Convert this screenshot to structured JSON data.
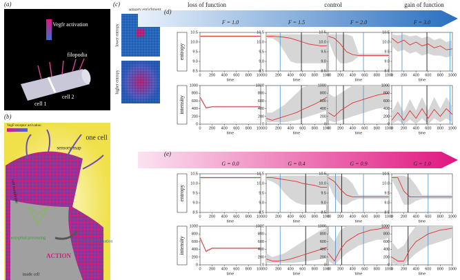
{
  "panel_a": {
    "label": "(a)",
    "colorbar": "Vegfr activation",
    "filopodia": "filopodia",
    "cell1": "cell 1",
    "cell2": "cell 2"
  },
  "panel_b": {
    "label": "(b)",
    "colorbar": "VegF-receptor activation",
    "one_cell": "one cell",
    "sensory_map": "sensory map",
    "membrane": "cell membrane",
    "perceptual": "perceptual processing",
    "action": "ACTION",
    "filopodia": "filopodia formation",
    "inside": "inside cell"
  },
  "panel_c": {
    "label": "(c)",
    "title": "sensory enrichment",
    "lower": "lower entropy",
    "higher": "higher entropy"
  },
  "panel_d": {
    "type": "line",
    "label": "(d)",
    "headers": [
      "loss of function",
      "control",
      "gain of function"
    ],
    "params": [
      "F = 1.0",
      "F = 1.5",
      "F = 2.0",
      "F = 3.0"
    ],
    "x": [
      0,
      100,
      200,
      300,
      400,
      500,
      600,
      700,
      800,
      900,
      1000
    ],
    "xlim": [
      0,
      1000
    ],
    "xticks": [
      0,
      200,
      400,
      600,
      800,
      1000
    ],
    "xlabel": "time",
    "mean_color": "#e03030",
    "band_color": "#d6d6d6",
    "rows": [
      {
        "ylabel": "entropy",
        "ylim": [
          8.5,
          10.5
        ],
        "yticks": [
          8.5,
          {
            "value": 9,
            "label": "9.0"
          },
          9.5,
          {
            "value": 10,
            "label": "10.0"
          },
          10.5
        ],
        "charts": [
          {
            "mean": [
              10.3,
              10.3,
              10.3,
              10.3,
              10.3,
              10.3,
              10.3,
              10.3,
              10.3,
              10.3,
              10.3
            ],
            "band_low": [
              10.25,
              10.25,
              10.25,
              10.25,
              10.25,
              10.25,
              10.25,
              10.25,
              10.25,
              10.25,
              10.25
            ],
            "band_high": [
              10.35,
              10.35,
              10.35,
              10.35,
              10.35,
              10.35,
              10.35,
              10.35,
              10.35,
              10.35,
              10.35
            ],
            "vlines": []
          },
          {
            "mean": [
              10.3,
              10.3,
              10.28,
              10.25,
              10.2,
              10.1,
              10.0,
              9.9,
              9.85,
              9.8,
              9.8
            ],
            "band_low": [
              10.2,
              10.2,
              10.0,
              9.5,
              9.0,
              8.9,
              8.9,
              8.9,
              8.9,
              8.9,
              8.9
            ],
            "band_high": [
              10.4,
              10.4,
              10.4,
              10.4,
              10.4,
              10.4,
              10.4,
              10.4,
              10.4,
              10.4,
              10.4
            ],
            "vlines": [
              {
                "x": 230,
                "color": "#4a90c8"
              },
              {
                "x": 580,
                "color": "#000000"
              }
            ]
          },
          {
            "mean": [
              10.3,
              10.2,
              9.9,
              9.5,
              9.35,
              9.3,
              9.3,
              9.3,
              9.3,
              9.3,
              9.3
            ],
            "band_low": [
              10.1,
              9.3,
              8.9,
              8.9,
              9.0,
              9.25,
              9.25,
              9.25,
              9.25,
              9.25,
              9.25
            ],
            "band_high": [
              10.4,
              10.4,
              10.4,
              10.4,
              10.3,
              9.4,
              9.4,
              9.4,
              9.4,
              9.4,
              9.4
            ],
            "vlines": [
              {
                "x": 130,
                "color": "#4a90c8"
              },
              {
                "x": 250,
                "color": "#000000"
              },
              {
                "x": 580,
                "color": "#4a90c8"
              }
            ]
          },
          {
            "mean": [
              10.2,
              9.95,
              10.1,
              9.85,
              10.0,
              9.8,
              9.9,
              9.7,
              9.8,
              9.6,
              9.65
            ],
            "band_low": [
              9.8,
              9.5,
              9.6,
              9.4,
              9.5,
              9.3,
              9.4,
              9.3,
              9.3,
              9.2,
              9.3
            ],
            "band_high": [
              10.4,
              10.35,
              10.4,
              10.3,
              10.35,
              10.2,
              10.3,
              10.1,
              10.2,
              10.0,
              10.1
            ],
            "vlines": [
              {
                "x": 170,
                "color": "#4a90c8"
              },
              {
                "x": 580,
                "color": "#000000"
              },
              {
                "x": 960,
                "color": "#4a90c8"
              }
            ]
          }
        ]
      },
      {
        "ylabel": "intensity",
        "ylim": [
          0,
          1000
        ],
        "yticks": [
          0,
          200,
          400,
          600,
          800,
          1000
        ],
        "charts": [
          {
            "mean": [
              700,
              420,
              450,
              450,
              450,
              450,
              450,
              450,
              450,
              450,
              450
            ],
            "band_low": [
              650,
              400,
              430,
              430,
              430,
              430,
              430,
              430,
              430,
              430,
              430
            ],
            "band_high": [
              750,
              450,
              470,
              470,
              470,
              470,
              470,
              470,
              470,
              470,
              470
            ],
            "vlines": []
          },
          {
            "mean": [
              150,
              100,
              150,
              200,
              250,
              300,
              380,
              450,
              520,
              600,
              700
            ],
            "band_low": [
              50,
              50,
              50,
              50,
              80,
              100,
              150,
              200,
              250,
              300,
              350
            ],
            "band_high": [
              300,
              300,
              400,
              500,
              650,
              800,
              950,
              1000,
              1000,
              1000,
              1000
            ],
            "vlines": [
              {
                "x": 230,
                "color": "#4a90c8"
              },
              {
                "x": 580,
                "color": "#000000"
              }
            ]
          },
          {
            "mean": [
              300,
              200,
              350,
              450,
              550,
              600,
              650,
              700,
              750,
              780,
              800
            ],
            "band_low": [
              100,
              50,
              100,
              150,
              200,
              250,
              300,
              350,
              400,
              420,
              450
            ],
            "band_high": [
              800,
              700,
              800,
              900,
              1000,
              1000,
              1000,
              1000,
              1000,
              1000,
              1000
            ],
            "vlines": [
              {
                "x": 130,
                "color": "#4a90c8"
              },
              {
                "x": 250,
                "color": "#000000"
              },
              {
                "x": 580,
                "color": "#4a90c8"
              }
            ]
          },
          {
            "mean": [
              100,
              300,
              100,
              350,
              150,
              400,
              150,
              380,
              200,
              400,
              250
            ],
            "band_low": [
              0,
              100,
              0,
              120,
              0,
              150,
              0,
              150,
              50,
              150,
              50
            ],
            "band_high": [
              300,
              600,
              300,
              650,
              350,
              700,
              350,
              700,
              400,
              700,
              450
            ],
            "vlines": [
              {
                "x": 170,
                "color": "#4a90c8"
              },
              {
                "x": 580,
                "color": "#000000"
              },
              {
                "x": 960,
                "color": "#4a90c8"
              }
            ]
          }
        ]
      }
    ]
  },
  "panel_e": {
    "type": "line",
    "label": "(e)",
    "params": [
      "G = 0.0",
      "G = 0.4",
      "G = 0.9",
      "G = 1.0"
    ],
    "x": [
      0,
      100,
      200,
      300,
      400,
      500,
      600,
      700,
      800,
      900,
      1000
    ],
    "xlim": [
      0,
      1000
    ],
    "xticks": [
      0,
      200,
      400,
      600,
      800,
      1000
    ],
    "xlabel": "time",
    "mean_color": "#e03030",
    "band_color": "#d6d6d6",
    "rows": [
      {
        "ylabel": "entropy",
        "ylim": [
          8.5,
          10.5
        ],
        "yticks": [
          8.5,
          {
            "value": 9,
            "label": "9.0"
          },
          9.5,
          {
            "value": 10,
            "label": "10.0"
          },
          10.5
        ],
        "charts": [
          {
            "mean": [
              10.3,
              10.3,
              10.3,
              10.3,
              10.3,
              10.3,
              10.3,
              10.3,
              10.3,
              10.3,
              10.3
            ],
            "band_low": [
              10.25,
              10.25,
              10.25,
              10.25,
              10.25,
              10.25,
              10.25,
              10.25,
              10.25,
              10.25,
              10.25
            ],
            "band_high": [
              10.35,
              10.35,
              10.35,
              10.35,
              10.35,
              10.35,
              10.35,
              10.35,
              10.35,
              10.35,
              10.35
            ],
            "vlines": []
          },
          {
            "mean": [
              10.3,
              10.3,
              10.25,
              10.2,
              10.15,
              10.1,
              10.0,
              9.95,
              9.9,
              9.8,
              9.8
            ],
            "band_low": [
              10.2,
              10.1,
              9.9,
              9.5,
              9.2,
              9.0,
              8.9,
              8.9,
              8.9,
              8.9,
              8.9
            ],
            "band_high": [
              10.4,
              10.4,
              10.4,
              10.4,
              10.4,
              10.4,
              10.4,
              10.4,
              10.4,
              10.4,
              10.4
            ],
            "vlines": [
              {
                "x": 230,
                "color": "#4a90c8"
              },
              {
                "x": 650,
                "color": "#000000"
              }
            ]
          },
          {
            "mean": [
              10.3,
              10.1,
              9.7,
              9.4,
              9.3,
              9.3,
              9.3,
              9.3,
              9.3,
              9.3,
              9.3
            ],
            "band_low": [
              10.0,
              9.3,
              8.9,
              8.9,
              9.1,
              9.2,
              9.2,
              9.2,
              9.2,
              9.2,
              9.2
            ],
            "band_high": [
              10.4,
              10.4,
              10.4,
              10.3,
              10.0,
              9.4,
              9.4,
              9.4,
              9.4,
              9.4,
              9.4
            ],
            "vlines": [
              {
                "x": 120,
                "color": "#4a90c8"
              },
              {
                "x": 220,
                "color": "#000000"
              },
              {
                "x": 580,
                "color": "#4a90c8"
              }
            ]
          },
          {
            "mean": [
              10.3,
              10.3,
              9.6,
              9.3,
              9.3,
              9.3,
              9.3,
              9.3,
              9.3,
              9.3,
              9.3
            ],
            "band_low": [
              10.2,
              9.6,
              8.9,
              8.9,
              9.1,
              9.2,
              9.2,
              9.2,
              9.2,
              9.2,
              9.2
            ],
            "band_high": [
              10.4,
              10.4,
              10.4,
              10.3,
              9.9,
              9.4,
              9.4,
              9.4,
              9.4,
              9.4,
              9.4
            ],
            "vlines": [
              {
                "x": 270,
                "color": "#000000"
              },
              {
                "x": 600,
                "color": "#4a90c8"
              }
            ]
          }
        ]
      },
      {
        "ylabel": "intensity",
        "ylim": [
          0,
          1000
        ],
        "yticks": [
          0,
          200,
          400,
          600,
          800,
          1000
        ],
        "charts": [
          {
            "mean": [
              700,
              350,
              430,
              430,
              430,
              430,
              430,
              430,
              430,
              430,
              430
            ],
            "band_low": [
              650,
              320,
              410,
              410,
              410,
              410,
              410,
              410,
              410,
              410,
              410
            ],
            "band_high": [
              750,
              380,
              450,
              450,
              450,
              450,
              450,
              450,
              450,
              450,
              450
            ],
            "vlines": []
          },
          {
            "mean": [
              150,
              100,
              100,
              120,
              150,
              200,
              250,
              300,
              350,
              400,
              450
            ],
            "band_low": [
              50,
              50,
              50,
              50,
              50,
              60,
              80,
              100,
              120,
              150,
              180
            ],
            "band_high": [
              300,
              200,
              250,
              300,
              400,
              500,
              600,
              700,
              800,
              900,
              950
            ],
            "vlines": [
              {
                "x": 230,
                "color": "#4a90c8"
              },
              {
                "x": 650,
                "color": "#000000"
              }
            ]
          },
          {
            "mean": [
              300,
              100,
              400,
              600,
              700,
              800,
              850,
              900,
              920,
              950,
              950
            ],
            "band_low": [
              100,
              0,
              150,
              300,
              400,
              500,
              550,
              600,
              650,
              650,
              700
            ],
            "band_high": [
              800,
              600,
              900,
              1000,
              1000,
              1000,
              1000,
              1000,
              1000,
              1000,
              1000
            ],
            "vlines": [
              {
                "x": 120,
                "color": "#4a90c8"
              },
              {
                "x": 220,
                "color": "#000000"
              },
              {
                "x": 580,
                "color": "#4a90c8"
              }
            ]
          },
          {
            "mean": [
              200,
              100,
              100,
              400,
              600,
              700,
              800,
              850,
              900,
              920,
              950
            ],
            "band_low": [
              50,
              0,
              0,
              150,
              300,
              400,
              500,
              550,
              600,
              650,
              700
            ],
            "band_high": [
              600,
              400,
              500,
              800,
              1000,
              1000,
              1000,
              1000,
              1000,
              1000,
              1000
            ],
            "vlines": [
              {
                "x": 270,
                "color": "#000000"
              },
              {
                "x": 600,
                "color": "#4a90c8"
              }
            ]
          }
        ]
      }
    ]
  }
}
